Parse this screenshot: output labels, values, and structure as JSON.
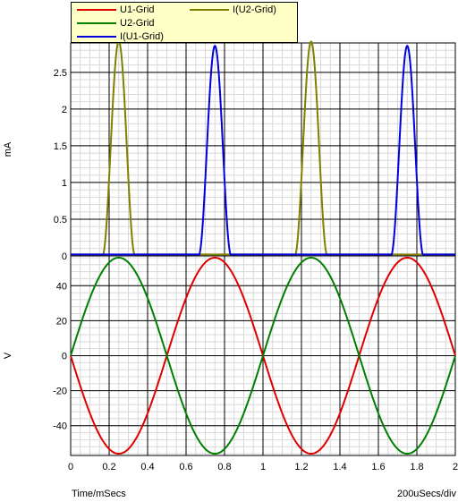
{
  "legend": {
    "items": [
      {
        "label": "U1-Grid",
        "color": "#e00000"
      },
      {
        "label": "I(U2-Grid)",
        "color": "#7f7f00"
      },
      {
        "label": "U2-Grid",
        "color": "#007f00"
      },
      {
        "label": "I(U1-Grid)",
        "color": "#0000e0"
      }
    ]
  },
  "footer": {
    "xlabel": "Time/mSecs",
    "timebase": "200uSecs/div"
  },
  "chart_data": [
    {
      "type": "line",
      "ylabel": "mA",
      "xlim": [
        0,
        2
      ],
      "ylim": [
        0,
        2.9
      ],
      "x_ticks": [
        "0",
        "0.2",
        "0.4",
        "0.6",
        "0.8",
        "1",
        "1.2",
        "1.4",
        "1.6",
        "1.8",
        "2"
      ],
      "y_ticks": [
        "0",
        "0.5",
        "1",
        "1.5",
        "2",
        "2.5"
      ],
      "grid": true,
      "series": [
        {
          "name": "I(U2-Grid)",
          "color": "#7f7f00",
          "kind": "pulse",
          "peak": 2.92,
          "centers": [
            0.25,
            1.25
          ],
          "halfwidth": 0.085
        },
        {
          "name": "I(U1-Grid)",
          "color": "#0000e0",
          "kind": "pulse",
          "peak": 2.86,
          "centers": [
            0.75,
            1.75
          ],
          "halfwidth": 0.085
        }
      ]
    },
    {
      "type": "line",
      "ylabel": "V",
      "xlim": [
        0,
        2
      ],
      "ylim": [
        -57,
        57
      ],
      "x_ticks": [
        "0",
        "0.2",
        "0.4",
        "0.6",
        "0.8",
        "1",
        "1.2",
        "1.4",
        "1.6",
        "1.8",
        "2"
      ],
      "y_ticks": [
        "40",
        "20",
        "0",
        "-20",
        "-40"
      ],
      "grid": true,
      "series": [
        {
          "name": "U1-Grid",
          "color": "#e00000",
          "kind": "sine",
          "amplitude": -56,
          "period": 1.0
        },
        {
          "name": "U2-Grid",
          "color": "#007f00",
          "kind": "sine",
          "amplitude": 56,
          "period": 1.0
        }
      ]
    }
  ]
}
